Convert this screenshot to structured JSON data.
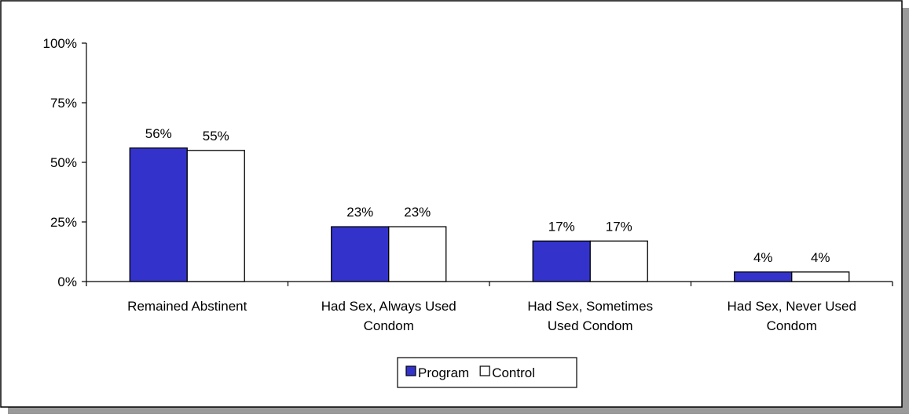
{
  "chart_data": {
    "type": "bar",
    "title": "",
    "xlabel": "",
    "ylabel": "",
    "categories": [
      [
        "Remained Abstinent"
      ],
      [
        "Had Sex, Always Used",
        "Condom"
      ],
      [
        "Had Sex, Sometimes",
        "Used Condom"
      ],
      [
        "Had Sex, Never Used",
        "Condom"
      ]
    ],
    "series": [
      {
        "name": "Program",
        "values": [
          56,
          23,
          17,
          4
        ],
        "labels": [
          "56%",
          "23%",
          "17%",
          "4%"
        ],
        "color": "#3333cc"
      },
      {
        "name": "Control",
        "values": [
          55,
          23,
          17,
          4
        ],
        "labels": [
          "55%",
          "23%",
          "17%",
          "4%"
        ],
        "color": "#ffffff"
      }
    ],
    "ylim": [
      0,
      100
    ],
    "yticks": [
      0,
      25,
      50,
      75,
      100
    ],
    "ytick_labels": [
      "0%",
      "25%",
      "50%",
      "75%",
      "100%"
    ],
    "grid": false,
    "legend_position": "bottom-center"
  }
}
